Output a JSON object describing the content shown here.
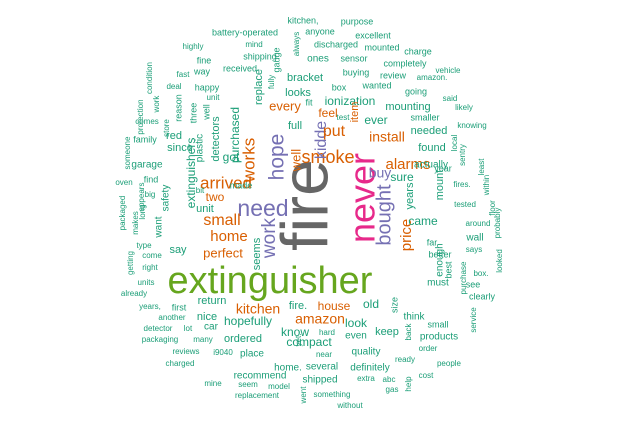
{
  "colors": {
    "background": "#ffffff",
    "teal": "#1b9e77",
    "orange": "#d95f02",
    "purple": "#7570b3",
    "magenta": "#e7298a",
    "green": "#66a61e",
    "gray": "#666666"
  },
  "words": [
    {
      "text": "fire",
      "color": "gray"
    },
    {
      "text": "extinguisher",
      "color": "green"
    },
    {
      "text": "never",
      "color": "magenta"
    },
    {
      "text": "need",
      "color": "purple"
    },
    {
      "text": "hope",
      "color": "purple"
    },
    {
      "text": "bought",
      "color": "purple"
    },
    {
      "text": "work",
      "color": "purple"
    },
    {
      "text": "smoke",
      "color": "orange"
    },
    {
      "text": "kidde",
      "color": "purple"
    },
    {
      "text": "put",
      "color": "orange"
    },
    {
      "text": "works",
      "color": "orange"
    },
    {
      "text": "arrived",
      "color": "orange"
    },
    {
      "text": "small",
      "color": "orange"
    },
    {
      "text": "home",
      "color": "orange"
    },
    {
      "text": "alarms",
      "color": "orange"
    },
    {
      "text": "price",
      "color": "orange"
    },
    {
      "text": "kitchen",
      "color": "orange"
    },
    {
      "text": "amazon",
      "color": "orange"
    },
    {
      "text": "buy",
      "color": "purple"
    },
    {
      "text": "install",
      "color": "orange"
    },
    {
      "text": "well",
      "color": "orange"
    },
    {
      "text": "perfect",
      "color": "orange"
    },
    {
      "text": "came",
      "color": "teal"
    },
    {
      "text": "every",
      "color": "orange"
    },
    {
      "text": "feel",
      "color": "orange"
    },
    {
      "text": "house",
      "color": "orange"
    },
    {
      "text": "fire.",
      "color": "teal"
    },
    {
      "text": "two",
      "color": "orange"
    },
    {
      "text": "ionization",
      "color": "teal"
    },
    {
      "text": "replace",
      "color": "teal"
    },
    {
      "text": "purchased",
      "color": "teal"
    },
    {
      "text": "ever",
      "color": "teal"
    },
    {
      "text": "item",
      "color": "orange"
    },
    {
      "text": "hopefully",
      "color": "teal"
    },
    {
      "text": "return",
      "color": "teal"
    },
    {
      "text": "seems",
      "color": "teal"
    },
    {
      "text": "got",
      "color": "teal"
    },
    {
      "text": "sure",
      "color": "teal"
    },
    {
      "text": "old",
      "color": "teal"
    },
    {
      "text": "look",
      "color": "teal"
    },
    {
      "text": "know",
      "color": "teal"
    },
    {
      "text": "compact",
      "color": "teal"
    },
    {
      "text": "ordered",
      "color": "teal"
    },
    {
      "text": "mounting",
      "color": "teal"
    },
    {
      "text": "found",
      "color": "teal"
    },
    {
      "text": "needed",
      "color": "teal"
    },
    {
      "text": "years",
      "color": "teal"
    },
    {
      "text": "full",
      "color": "teal"
    },
    {
      "text": "looks",
      "color": "teal"
    },
    {
      "text": "bracket",
      "color": "teal"
    },
    {
      "text": "mount",
      "color": "teal"
    },
    {
      "text": "extinguishers",
      "color": "teal"
    },
    {
      "text": "unit",
      "color": "teal"
    },
    {
      "text": "say",
      "color": "teal"
    },
    {
      "text": "nice",
      "color": "teal"
    },
    {
      "text": "car",
      "color": "teal"
    },
    {
      "text": "keep",
      "color": "teal"
    },
    {
      "text": "must",
      "color": "teal"
    },
    {
      "text": "enough",
      "color": "teal"
    },
    {
      "text": "quality",
      "color": "teal"
    },
    {
      "text": "even",
      "color": "teal"
    },
    {
      "text": "place",
      "color": "teal"
    },
    {
      "text": "recommend",
      "color": "teal"
    },
    {
      "text": "home.",
      "color": "teal"
    },
    {
      "text": "several",
      "color": "teal"
    },
    {
      "text": "shipped",
      "color": "teal"
    },
    {
      "text": "definitely",
      "color": "teal"
    },
    {
      "text": "kitchen,",
      "color": "teal"
    },
    {
      "text": "purpose",
      "color": "teal"
    },
    {
      "text": "anyone",
      "color": "teal"
    },
    {
      "text": "excellent",
      "color": "teal"
    },
    {
      "text": "battery-operated",
      "color": "teal"
    },
    {
      "text": "discharged",
      "color": "teal"
    },
    {
      "text": "mounted",
      "color": "teal"
    },
    {
      "text": "charge",
      "color": "teal"
    },
    {
      "text": "shipping",
      "color": "teal"
    },
    {
      "text": "ones",
      "color": "teal"
    },
    {
      "text": "sensor",
      "color": "teal"
    },
    {
      "text": "completely",
      "color": "teal"
    },
    {
      "text": "highly",
      "color": "teal"
    },
    {
      "text": "mind",
      "color": "teal"
    },
    {
      "text": "always",
      "color": "teal"
    },
    {
      "text": "fine",
      "color": "teal"
    },
    {
      "text": "way",
      "color": "teal"
    },
    {
      "text": "received",
      "color": "teal"
    },
    {
      "text": "gauge",
      "color": "teal"
    },
    {
      "text": "buying",
      "color": "teal"
    },
    {
      "text": "review",
      "color": "teal"
    },
    {
      "text": "vehicle",
      "color": "teal"
    },
    {
      "text": "fast",
      "color": "teal"
    },
    {
      "text": "happy",
      "color": "teal"
    },
    {
      "text": "amazon.",
      "color": "teal"
    },
    {
      "text": "condition",
      "color": "teal"
    },
    {
      "text": "deal",
      "color": "teal"
    },
    {
      "text": "fully",
      "color": "teal"
    },
    {
      "text": "fit",
      "color": "teal"
    },
    {
      "text": "wanted",
      "color": "teal"
    },
    {
      "text": "going",
      "color": "teal"
    },
    {
      "text": "said",
      "color": "teal"
    },
    {
      "text": "reason",
      "color": "teal"
    },
    {
      "text": "unit",
      "color": "teal"
    },
    {
      "text": "box",
      "color": "teal"
    },
    {
      "text": "likely",
      "color": "teal"
    },
    {
      "text": "protection",
      "color": "teal"
    },
    {
      "text": "work",
      "color": "teal"
    },
    {
      "text": "three",
      "color": "teal"
    },
    {
      "text": "well",
      "color": "teal"
    },
    {
      "text": "test",
      "color": "teal"
    },
    {
      "text": "smaller",
      "color": "teal"
    },
    {
      "text": "knowing",
      "color": "teal"
    },
    {
      "text": "comes",
      "color": "teal"
    },
    {
      "text": "store",
      "color": "teal"
    },
    {
      "text": "detectors",
      "color": "teal"
    },
    {
      "text": "actually",
      "color": "teal"
    },
    {
      "text": "local",
      "color": "teal"
    },
    {
      "text": "family",
      "color": "teal"
    },
    {
      "text": "red",
      "color": "teal"
    },
    {
      "text": "since",
      "color": "teal"
    },
    {
      "text": "plastic",
      "color": "teal"
    },
    {
      "text": "year",
      "color": "teal"
    },
    {
      "text": "sentry",
      "color": "teal"
    },
    {
      "text": "someone",
      "color": "teal"
    },
    {
      "text": "garage",
      "color": "teal"
    },
    {
      "text": "least",
      "color": "teal"
    },
    {
      "text": "oven",
      "color": "teal"
    },
    {
      "text": "find",
      "color": "teal"
    },
    {
      "text": "made",
      "color": "teal"
    },
    {
      "text": "fires.",
      "color": "teal"
    },
    {
      "text": "within",
      "color": "teal"
    },
    {
      "text": "big",
      "color": "teal"
    },
    {
      "text": "appears",
      "color": "teal"
    },
    {
      "text": "safety",
      "color": "teal"
    },
    {
      "text": "bit",
      "color": "teal"
    },
    {
      "text": "floor",
      "color": "teal"
    },
    {
      "text": "packaged",
      "color": "teal"
    },
    {
      "text": "makes",
      "color": "teal"
    },
    {
      "text": "long",
      "color": "teal"
    },
    {
      "text": "tested",
      "color": "teal"
    },
    {
      "text": "probably",
      "color": "teal"
    },
    {
      "text": "want",
      "color": "teal"
    },
    {
      "text": "around",
      "color": "teal"
    },
    {
      "text": "type",
      "color": "teal"
    },
    {
      "text": "getting",
      "color": "teal"
    },
    {
      "text": "come",
      "color": "teal"
    },
    {
      "text": "far",
      "color": "teal"
    },
    {
      "text": "wall",
      "color": "teal"
    },
    {
      "text": "right",
      "color": "teal"
    },
    {
      "text": "says",
      "color": "teal"
    },
    {
      "text": "better",
      "color": "teal"
    },
    {
      "text": "looked",
      "color": "teal"
    },
    {
      "text": "box.",
      "color": "teal"
    },
    {
      "text": "units",
      "color": "teal"
    },
    {
      "text": "see",
      "color": "teal"
    },
    {
      "text": "already",
      "color": "teal"
    },
    {
      "text": "clearly",
      "color": "teal"
    },
    {
      "text": "years,",
      "color": "teal"
    },
    {
      "text": "first",
      "color": "teal"
    },
    {
      "text": "size",
      "color": "teal"
    },
    {
      "text": "best",
      "color": "teal"
    },
    {
      "text": "purchase",
      "color": "teal"
    },
    {
      "text": "think",
      "color": "teal"
    },
    {
      "text": "another",
      "color": "teal"
    },
    {
      "text": "lot",
      "color": "teal"
    },
    {
      "text": "back",
      "color": "teal"
    },
    {
      "text": "small",
      "color": "teal"
    },
    {
      "text": "detector",
      "color": "teal"
    },
    {
      "text": "hard",
      "color": "teal"
    },
    {
      "text": "service",
      "color": "teal"
    },
    {
      "text": "packaging",
      "color": "teal"
    },
    {
      "text": "many",
      "color": "teal"
    },
    {
      "text": "yet.",
      "color": "teal"
    },
    {
      "text": "products",
      "color": "teal"
    },
    {
      "text": "reviews",
      "color": "teal"
    },
    {
      "text": "i9040",
      "color": "teal"
    },
    {
      "text": "order",
      "color": "teal"
    },
    {
      "text": "charged",
      "color": "teal"
    },
    {
      "text": "near",
      "color": "teal"
    },
    {
      "text": "ready",
      "color": "teal"
    },
    {
      "text": "people",
      "color": "teal"
    },
    {
      "text": "mine",
      "color": "teal"
    },
    {
      "text": "extra",
      "color": "teal"
    },
    {
      "text": "abc",
      "color": "teal"
    },
    {
      "text": "cost",
      "color": "teal"
    },
    {
      "text": "seem",
      "color": "teal"
    },
    {
      "text": "model",
      "color": "teal"
    },
    {
      "text": "help",
      "color": "teal"
    },
    {
      "text": "replacement",
      "color": "teal"
    },
    {
      "text": "went",
      "color": "teal"
    },
    {
      "text": "something",
      "color": "teal"
    },
    {
      "text": "gas",
      "color": "teal"
    },
    {
      "text": "without",
      "color": "teal"
    }
  ]
}
